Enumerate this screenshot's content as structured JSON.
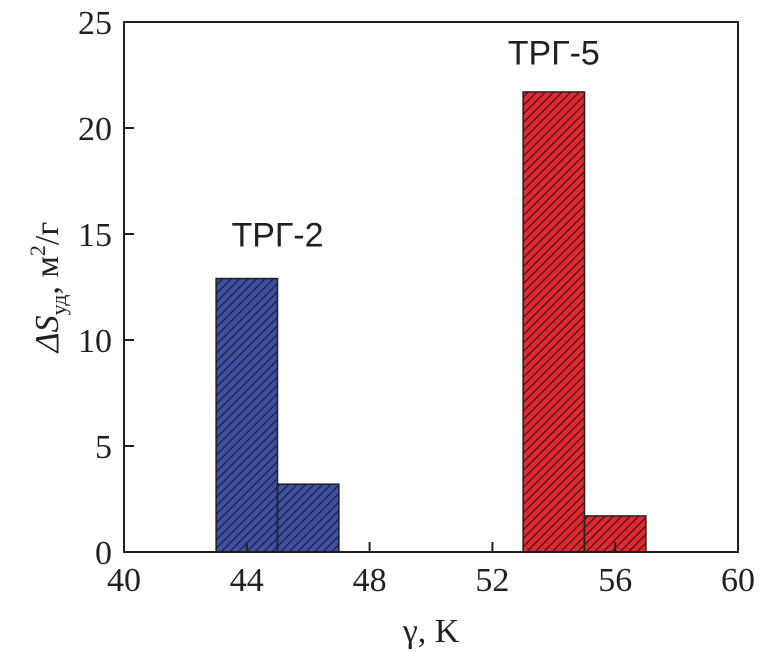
{
  "chart_data": {
    "type": "bar",
    "xlabel": "γ, K",
    "ylabel": {
      "prefix": "ΔS",
      "subscript": "уд",
      "units_before": ", м",
      "superscript": "2",
      "units_after": "/г"
    },
    "xlim": [
      40,
      60
    ],
    "ylim": [
      0,
      25
    ],
    "xticks": [
      "40",
      "44",
      "48",
      "52",
      "56",
      "60"
    ],
    "yticks": [
      "0",
      "5",
      "10",
      "15",
      "20",
      "25"
    ],
    "grid": false,
    "bin_width": 2,
    "series": [
      {
        "name": "ТРГ-2",
        "color": "#3a50a6",
        "bins": [
          {
            "x0": 43,
            "x1": 45,
            "value": 12.9
          },
          {
            "x0": 45,
            "x1": 47,
            "value": 3.2
          }
        ]
      },
      {
        "name": "ТРГ-5",
        "color": "#e8262e",
        "bins": [
          {
            "x0": 53,
            "x1": 55,
            "value": 21.7
          },
          {
            "x0": 55,
            "x1": 57,
            "value": 1.7
          }
        ]
      }
    ],
    "annotations": [
      {
        "text": "ТРГ-2",
        "x": 45,
        "y": 14.4
      },
      {
        "text": "ТРГ-5",
        "x": 54,
        "y": 23.0
      }
    ]
  }
}
